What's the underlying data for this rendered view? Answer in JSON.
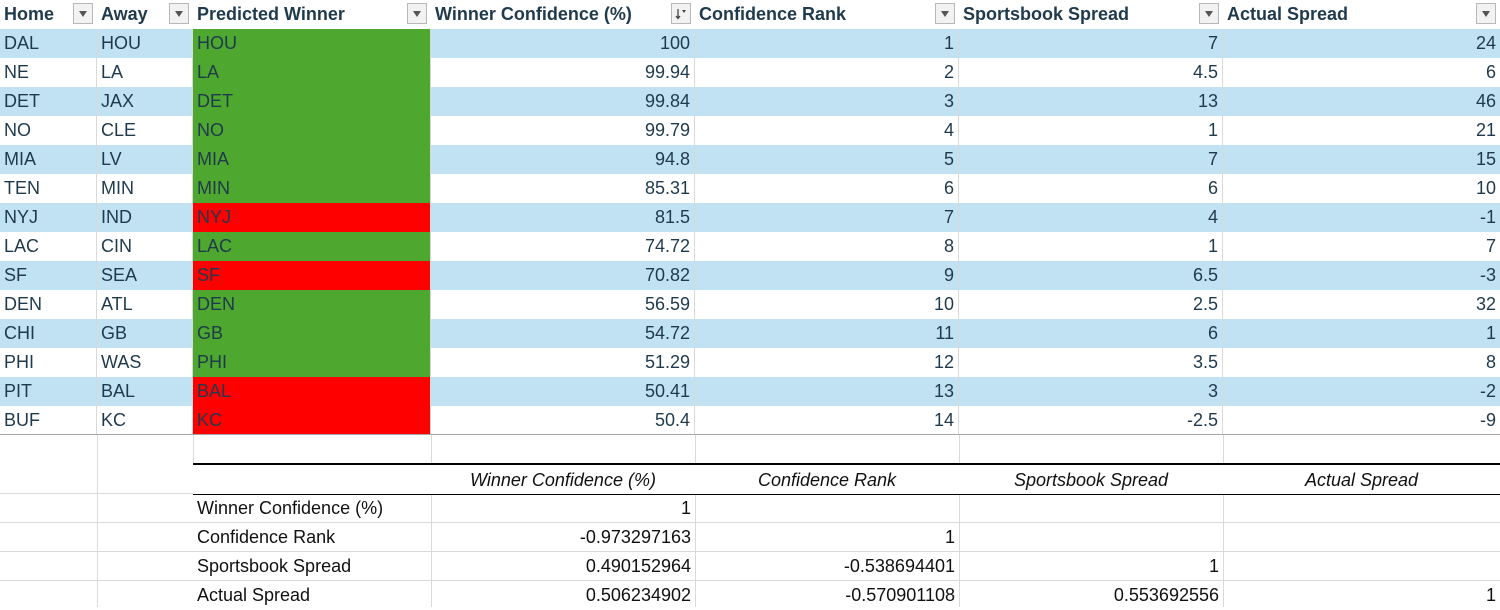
{
  "headers": [
    {
      "label": "Home",
      "filter": "dropdown"
    },
    {
      "label": "Away",
      "filter": "dropdown"
    },
    {
      "label": "Predicted Winner",
      "filter": "dropdown"
    },
    {
      "label": "Winner Confidence (%)",
      "filter": "sort-desc"
    },
    {
      "label": "Confidence Rank",
      "filter": "dropdown"
    },
    {
      "label": "Sportsbook Spread",
      "filter": "dropdown"
    },
    {
      "label": "Actual Spread",
      "filter": "dropdown"
    }
  ],
  "rows": [
    {
      "home": "DAL",
      "away": "HOU",
      "winner": "HOU",
      "confidence": "100",
      "rank": "1",
      "book_spread": "7",
      "actual_spread": "24",
      "result": "correct"
    },
    {
      "home": "NE",
      "away": "LA",
      "winner": "LA",
      "confidence": "99.94",
      "rank": "2",
      "book_spread": "4.5",
      "actual_spread": "6",
      "result": "correct"
    },
    {
      "home": "DET",
      "away": "JAX",
      "winner": "DET",
      "confidence": "99.84",
      "rank": "3",
      "book_spread": "13",
      "actual_spread": "46",
      "result": "correct"
    },
    {
      "home": "NO",
      "away": "CLE",
      "winner": "NO",
      "confidence": "99.79",
      "rank": "4",
      "book_spread": "1",
      "actual_spread": "21",
      "result": "correct"
    },
    {
      "home": "MIA",
      "away": "LV",
      "winner": "MIA",
      "confidence": "94.8",
      "rank": "5",
      "book_spread": "7",
      "actual_spread": "15",
      "result": "correct"
    },
    {
      "home": "TEN",
      "away": "MIN",
      "winner": "MIN",
      "confidence": "85.31",
      "rank": "6",
      "book_spread": "6",
      "actual_spread": "10",
      "result": "correct"
    },
    {
      "home": "NYJ",
      "away": "IND",
      "winner": "NYJ",
      "confidence": "81.5",
      "rank": "7",
      "book_spread": "4",
      "actual_spread": "-1",
      "result": "wrong"
    },
    {
      "home": "LAC",
      "away": "CIN",
      "winner": "LAC",
      "confidence": "74.72",
      "rank": "8",
      "book_spread": "1",
      "actual_spread": "7",
      "result": "correct"
    },
    {
      "home": "SF",
      "away": "SEA",
      "winner": "SF",
      "confidence": "70.82",
      "rank": "9",
      "book_spread": "6.5",
      "actual_spread": "-3",
      "result": "wrong"
    },
    {
      "home": "DEN",
      "away": "ATL",
      "winner": "DEN",
      "confidence": "56.59",
      "rank": "10",
      "book_spread": "2.5",
      "actual_spread": "32",
      "result": "correct"
    },
    {
      "home": "CHI",
      "away": "GB",
      "winner": "GB",
      "confidence": "54.72",
      "rank": "11",
      "book_spread": "6",
      "actual_spread": "1",
      "result": "correct"
    },
    {
      "home": "PHI",
      "away": "WAS",
      "winner": "PHI",
      "confidence": "51.29",
      "rank": "12",
      "book_spread": "3.5",
      "actual_spread": "8",
      "result": "correct"
    },
    {
      "home": "PIT",
      "away": "BAL",
      "winner": "BAL",
      "confidence": "50.41",
      "rank": "13",
      "book_spread": "3",
      "actual_spread": "-2",
      "result": "wrong"
    },
    {
      "home": "BUF",
      "away": "KC",
      "winner": "KC",
      "confidence": "50.4",
      "rank": "14",
      "book_spread": "-2.5",
      "actual_spread": "-9",
      "result": "wrong"
    }
  ],
  "correlation": {
    "columns": [
      "Winner Confidence (%)",
      "Confidence Rank",
      "Sportsbook Spread",
      "Actual Spread"
    ],
    "rows": [
      {
        "label": "Winner Confidence (%)",
        "values": [
          "1",
          "",
          "",
          ""
        ]
      },
      {
        "label": "Confidence Rank",
        "values": [
          "-0.973297163",
          "1",
          "",
          ""
        ]
      },
      {
        "label": "Sportsbook Spread",
        "values": [
          "0.490152964",
          "-0.538694401",
          "1",
          ""
        ]
      },
      {
        "label": "Actual Spread",
        "values": [
          "0.506234902",
          "-0.570901108",
          "0.553692556",
          "1"
        ]
      }
    ]
  },
  "colors": {
    "band": "#c0e2f2",
    "correct": "#4ea72e",
    "wrong": "#ff0000",
    "text": "#1f3a4d"
  }
}
